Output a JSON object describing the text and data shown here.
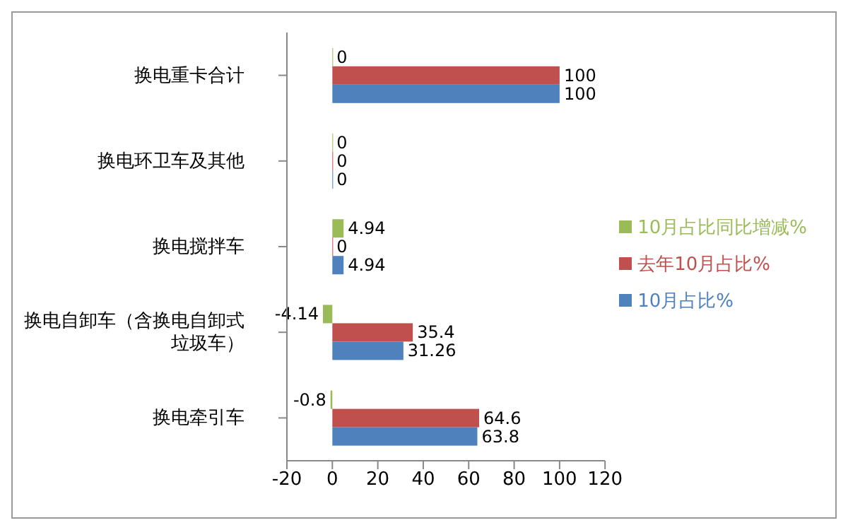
{
  "chart_data": {
    "type": "bar",
    "orientation": "horizontal",
    "categories": [
      "换电重卡合计",
      "换电环卫车及其他",
      "换电搅拌车",
      "换电自卸车（含换电自卸式垃圾车）",
      "换电牵引车"
    ],
    "series": [
      {
        "name": "10月占比同比增减%",
        "color": "#9bbb59",
        "values": [
          0,
          0,
          4.94,
          -4.14,
          -0.8
        ]
      },
      {
        "name": "去年10月占比%",
        "color": "#c0504d",
        "values": [
          100,
          0,
          0,
          35.4,
          64.6
        ]
      },
      {
        "name": "10月占比%",
        "color": "#4f81bd",
        "values": [
          100,
          0,
          4.94,
          31.26,
          63.8
        ]
      }
    ],
    "xlim": [
      -20,
      120
    ],
    "xticks": [
      -20,
      0,
      20,
      40,
      60,
      80,
      100,
      120
    ],
    "grid": false,
    "legend": "right",
    "data_labels": true
  }
}
